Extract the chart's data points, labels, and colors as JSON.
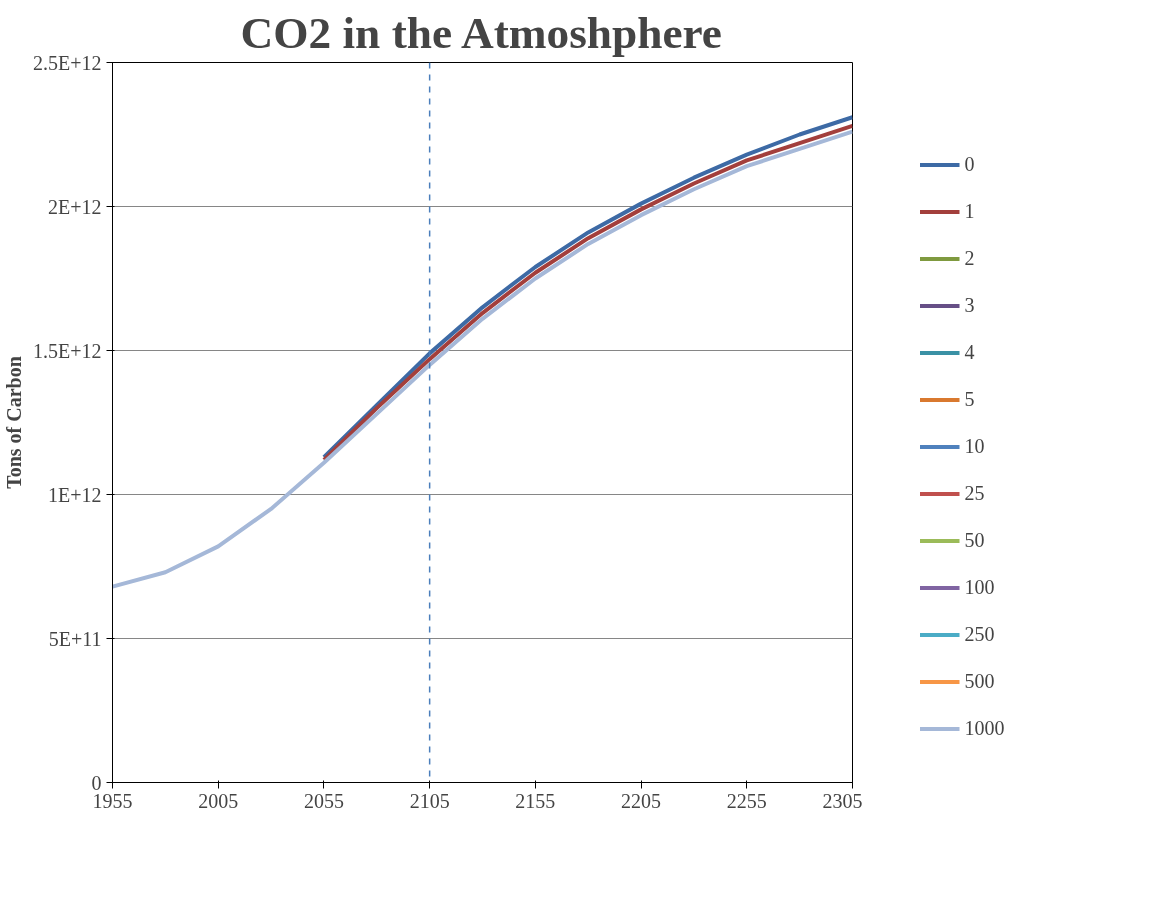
{
  "chart_data": {
    "type": "line",
    "title": "CO2 in the Atmoshphere",
    "ylabel": "Tons of Carbon",
    "x": [
      1955,
      1980,
      2005,
      2030,
      2055,
      2080,
      2105,
      2130,
      2155,
      2180,
      2205,
      2230,
      2255,
      2280,
      2305
    ],
    "xlim": [
      1955,
      2305
    ],
    "xticks": [
      1955,
      2005,
      2055,
      2105,
      2155,
      2205,
      2255,
      2305
    ],
    "ylim": [
      0,
      2500000000000
    ],
    "yticks": [
      {
        "value": 0,
        "label": "0"
      },
      {
        "value": 500000000000,
        "label": "5E+11"
      },
      {
        "value": 1000000000000,
        "label": "1E+12"
      },
      {
        "value": 1500000000000,
        "label": "1.5E+12"
      },
      {
        "value": 2000000000000,
        "label": "2E+12"
      },
      {
        "value": 2500000000000,
        "label": "2.5E+12"
      }
    ],
    "grid": "y",
    "legend": "right",
    "marker": "none",
    "line_style": "solid",
    "ref_lines": [
      {
        "axis": "x",
        "value": 2105,
        "label": null,
        "color": "#4a7ebb",
        "line_style": "dashed"
      }
    ],
    "series": [
      {
        "name": "0",
        "color": "#3d6aa5",
        "values": [
          null,
          null,
          null,
          null,
          1130000000000.0,
          1310000000000.0,
          1490000000000.0,
          1650000000000.0,
          1790000000000.0,
          1910000000000.0,
          2010000000000.0,
          2100000000000.0,
          2180000000000.0,
          2250000000000.0,
          2310000000000.0
        ]
      },
      {
        "name": "1",
        "color": "#a33f3c",
        "values": [
          null,
          null,
          null,
          null,
          1120000000000.0,
          1300000000000.0,
          1470000000000.0,
          1630000000000.0,
          1770000000000.0,
          1890000000000.0,
          1990000000000.0,
          2080000000000.0,
          2160000000000.0,
          2220000000000.0,
          2280000000000.0
        ]
      },
      {
        "name": "2",
        "color": "#7f9a3f",
        "values": [
          null,
          null,
          null,
          null,
          null,
          null,
          null,
          null,
          null,
          null,
          null,
          null,
          null,
          null,
          null
        ]
      },
      {
        "name": "3",
        "color": "#664f86",
        "values": [
          null,
          null,
          null,
          null,
          null,
          null,
          null,
          null,
          null,
          null,
          null,
          null,
          null,
          null,
          null
        ]
      },
      {
        "name": "4",
        "color": "#3a91a5",
        "values": [
          null,
          null,
          null,
          null,
          null,
          null,
          null,
          null,
          null,
          null,
          null,
          null,
          null,
          null,
          null
        ]
      },
      {
        "name": "5",
        "color": "#d9792f",
        "values": [
          null,
          null,
          null,
          null,
          null,
          null,
          null,
          null,
          null,
          null,
          null,
          null,
          null,
          null,
          null
        ]
      },
      {
        "name": "10",
        "color": "#4f81bd",
        "values": [
          null,
          null,
          null,
          null,
          null,
          null,
          null,
          null,
          null,
          null,
          null,
          null,
          null,
          null,
          null
        ]
      },
      {
        "name": "25",
        "color": "#c0504d",
        "values": [
          null,
          null,
          null,
          null,
          null,
          null,
          null,
          null,
          null,
          null,
          null,
          null,
          null,
          null,
          null
        ]
      },
      {
        "name": "50",
        "color": "#9bbb59",
        "values": [
          null,
          null,
          null,
          null,
          null,
          null,
          null,
          null,
          null,
          null,
          null,
          null,
          null,
          null,
          null
        ]
      },
      {
        "name": "100",
        "color": "#8064a2",
        "values": [
          null,
          null,
          null,
          null,
          null,
          null,
          null,
          null,
          null,
          null,
          null,
          null,
          null,
          null,
          null
        ]
      },
      {
        "name": "250",
        "color": "#4bacc6",
        "values": [
          null,
          null,
          null,
          null,
          null,
          null,
          null,
          null,
          null,
          null,
          null,
          null,
          null,
          null,
          null
        ]
      },
      {
        "name": "500",
        "color": "#f79646",
        "values": [
          null,
          null,
          null,
          null,
          null,
          null,
          null,
          null,
          null,
          null,
          null,
          null,
          null,
          null,
          null
        ]
      },
      {
        "name": "1000",
        "color": "#a5b8d8",
        "values": [
          680000000000.0,
          730000000000.0,
          820000000000.0,
          950000000000.0,
          1110000000000.0,
          1280000000000.0,
          1450000000000.0,
          1610000000000.0,
          1750000000000.0,
          1870000000000.0,
          1970000000000.0,
          2060000000000.0,
          2140000000000.0,
          2200000000000.0,
          2260000000000.0
        ]
      }
    ]
  }
}
